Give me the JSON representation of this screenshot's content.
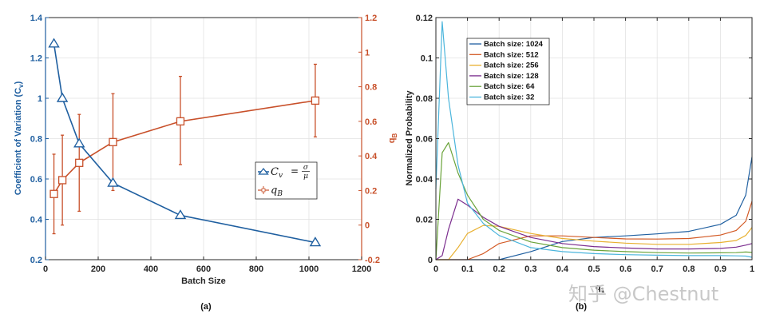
{
  "chart_data": [
    {
      "type": "line",
      "panel_label": "(a)",
      "xlabel": "Batch Size",
      "ylabel": "Coefficient of Variation (C_v)",
      "ylabel_right": "q_B",
      "xlim": [
        0,
        1200
      ],
      "ylim": [
        0.2,
        1.4
      ],
      "ylim_right": [
        -0.2,
        1.2
      ],
      "xticks": [
        "0",
        "200",
        "400",
        "600",
        "800",
        "1000",
        "1200"
      ],
      "yticks": [
        "0.2",
        "0.4",
        "0.6",
        "0.8",
        "1",
        "1.2",
        "1.4"
      ],
      "yticks_right": [
        "-0.2",
        "0",
        "0.2",
        "0.4",
        "0.6",
        "0.8",
        "1",
        "1.2"
      ],
      "grid": true,
      "legend_position": "center-right",
      "x": [
        32,
        64,
        128,
        256,
        512,
        1024
      ],
      "series": [
        {
          "name": "C_v = σ/μ",
          "axis": "left",
          "marker": "triangle",
          "color": "#1f5fa0",
          "values": [
            1.27,
            1.0,
            0.775,
            0.58,
            0.42,
            0.285
          ]
        },
        {
          "name": "q_B",
          "axis": "right",
          "marker": "square",
          "color": "#c8502a",
          "values": [
            0.18,
            0.26,
            0.36,
            0.48,
            0.6,
            0.72
          ],
          "error_low": [
            -0.05,
            0.0,
            0.08,
            0.2,
            0.35,
            0.51
          ],
          "error_high": [
            0.41,
            0.52,
            0.64,
            0.76,
            0.86,
            0.93
          ]
        }
      ]
    },
    {
      "type": "line",
      "panel_label": "(b)",
      "xlabel": "q_1",
      "ylabel": "Normalized Probability",
      "xlim": [
        0,
        1
      ],
      "ylim": [
        0,
        0.12
      ],
      "xticks": [
        "0",
        "0.1",
        "0.2",
        "0.3",
        "0.4",
        "0.5",
        "0.6",
        "0.7",
        "0.8",
        "0.9",
        "1"
      ],
      "yticks": [
        "0",
        "0.02",
        "0.04",
        "0.06",
        "0.08",
        "0.1",
        "0.12"
      ],
      "grid": true,
      "legend_position": "upper-left",
      "x": [
        0,
        0.02,
        0.04,
        0.07,
        0.1,
        0.15,
        0.2,
        0.3,
        0.4,
        0.5,
        0.6,
        0.7,
        0.8,
        0.9,
        0.95,
        0.98,
        1.0
      ],
      "series": [
        {
          "name": "Batch size: 1024",
          "color": "#1f5fa0",
          "values": [
            0,
            0,
            0,
            0,
            0,
            0,
            0,
            0.004,
            0.009,
            0.011,
            0.0118,
            0.0128,
            0.014,
            0.0175,
            0.022,
            0.032,
            0.051
          ]
        },
        {
          "name": "Batch size: 512",
          "color": "#d35a25",
          "values": [
            0,
            0,
            0,
            0,
            0,
            0.003,
            0.008,
            0.0118,
            0.0118,
            0.011,
            0.0103,
            0.0102,
            0.0105,
            0.0122,
            0.0145,
            0.019,
            0.029
          ]
        },
        {
          "name": "Batch size: 256",
          "color": "#e8b030",
          "values": [
            0,
            0,
            0,
            0.006,
            0.013,
            0.017,
            0.0165,
            0.013,
            0.0105,
            0.0092,
            0.0082,
            0.0076,
            0.0076,
            0.0085,
            0.0095,
            0.012,
            0.016
          ]
        },
        {
          "name": "Batch size: 128",
          "color": "#7b2d8e",
          "values": [
            0,
            0.002,
            0.015,
            0.03,
            0.027,
            0.021,
            0.0165,
            0.011,
            0.008,
            0.0065,
            0.0058,
            0.0053,
            0.0053,
            0.0056,
            0.0062,
            0.0072,
            0.008
          ]
        },
        {
          "name": "Batch size: 64",
          "color": "#6aa33a",
          "values": [
            0,
            0.053,
            0.058,
            0.043,
            0.032,
            0.02,
            0.0145,
            0.0088,
            0.006,
            0.0047,
            0.004,
            0.0035,
            0.0033,
            0.0034,
            0.0035,
            0.0038,
            0.0036
          ]
        },
        {
          "name": "Batch size: 32",
          "color": "#4bb5dc",
          "values": [
            0.035,
            0.118,
            0.08,
            0.047,
            0.028,
            0.018,
            0.012,
            0.006,
            0.004,
            0.003,
            0.0025,
            0.0022,
            0.002,
            0.002,
            0.0019,
            0.0018,
            0.0012
          ]
        }
      ]
    }
  ],
  "panel_a": {
    "xlabel": "Batch Size",
    "ylabel": "Coefficient of Variation (C",
    "ylabel_sub": "v",
    "ylabel_end": ")",
    "ylabel_right": "q",
    "ylabel_right_sub": "B",
    "caption": "(a)",
    "legend": {
      "cv_label": "C",
      "cv_sub": "v",
      "cv_eq": "=",
      "cv_num": "σ",
      "cv_den": "μ",
      "qb_label": "q",
      "qb_sub": "B"
    }
  },
  "panel_b": {
    "xlabel": "q",
    "xlabel_sub": "1",
    "ylabel": "Normalized Probability",
    "caption": "(b)"
  },
  "watermark": "知乎 @Chestnut"
}
